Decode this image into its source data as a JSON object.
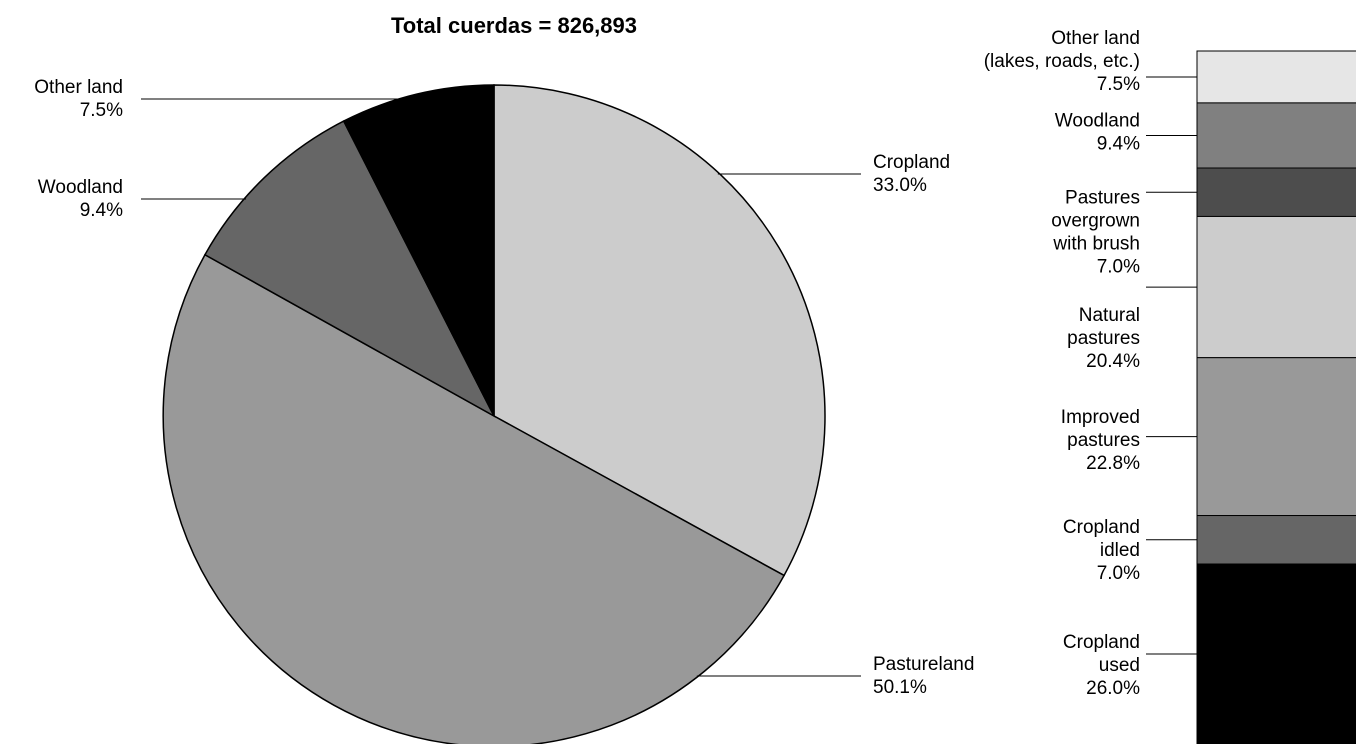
{
  "chart_data": [
    {
      "type": "pie",
      "title": "Total cuerdas = 826,893",
      "slices": [
        {
          "label": "Cropland",
          "value": 33.0,
          "value_label": "33.0%",
          "color": "#cccccc"
        },
        {
          "label": "Pastureland",
          "value": 50.1,
          "value_label": "50.1%",
          "color": "#999999"
        },
        {
          "label": "Woodland",
          "value": 9.4,
          "value_label": "9.4%",
          "color": "#666666"
        },
        {
          "label": "Other land",
          "value": 7.5,
          "value_label": "7.5%",
          "color": "#000000"
        }
      ]
    },
    {
      "type": "bar",
      "stacked": true,
      "segments": [
        {
          "label_lines": [
            "Other land",
            "(lakes, roads, etc.)"
          ],
          "value": 7.5,
          "value_label": "7.5%",
          "color": "#e6e6e6"
        },
        {
          "label_lines": [
            "Woodland"
          ],
          "value": 9.4,
          "value_label": "9.4%",
          "color": "#808080"
        },
        {
          "label_lines": [
            "Pastures",
            "overgrown",
            "with brush"
          ],
          "value": 7.0,
          "value_label": "7.0%",
          "color": "#4d4d4d"
        },
        {
          "label_lines": [
            "Natural",
            "pastures"
          ],
          "value": 20.4,
          "value_label": "20.4%",
          "color": "#cccccc"
        },
        {
          "label_lines": [
            "Improved",
            "pastures"
          ],
          "value": 22.8,
          "value_label": "22.8%",
          "color": "#999999"
        },
        {
          "label_lines": [
            "Cropland",
            "idled"
          ],
          "value": 7.0,
          "value_label": "7.0%",
          "color": "#666666"
        },
        {
          "label_lines": [
            "Cropland",
            "used"
          ],
          "value": 26.0,
          "value_label": "26.0%",
          "color": "#000000"
        }
      ]
    }
  ]
}
